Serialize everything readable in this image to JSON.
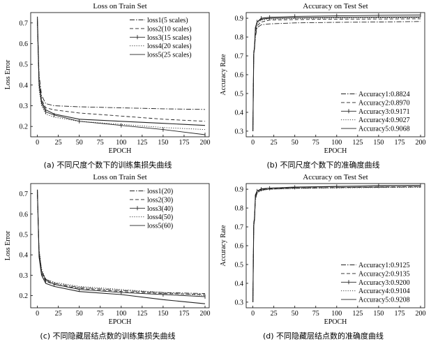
{
  "chart_data": [
    {
      "type": "line",
      "title": "Loss on Train Set",
      "xlabel": "EPOCH",
      "ylabel": "Loss Error",
      "caption": "(a) 不同尺度个数下的训练集损失曲线",
      "xlim": [
        -8,
        205
      ],
      "ylim": [
        0.15,
        0.75
      ],
      "xticks": [
        0,
        25,
        50,
        75,
        100,
        125,
        150,
        175,
        200
      ],
      "yticks": [
        0.2,
        0.3,
        0.4,
        0.5,
        0.6,
        0.7
      ],
      "legend_position": "top-right",
      "series": [
        {
          "name": "loss1(5 scales)",
          "style": "dashdot",
          "x": [
            0,
            2,
            5,
            10,
            20,
            50,
            100,
            150,
            200
          ],
          "y": [
            0.72,
            0.45,
            0.35,
            0.31,
            0.3,
            0.295,
            0.29,
            0.285,
            0.282
          ]
        },
        {
          "name": "loss2(10 scales)",
          "style": "dashed",
          "x": [
            0,
            2,
            5,
            10,
            20,
            50,
            100,
            150,
            200
          ],
          "y": [
            0.7,
            0.42,
            0.33,
            0.29,
            0.28,
            0.265,
            0.25,
            0.235,
            0.225
          ]
        },
        {
          "name": "loss3(15 scales)",
          "style": "marker",
          "x": [
            0,
            2,
            5,
            10,
            20,
            50,
            100,
            150,
            200
          ],
          "y": [
            0.71,
            0.4,
            0.31,
            0.27,
            0.255,
            0.225,
            0.205,
            0.185,
            0.16
          ]
        },
        {
          "name": "loss4(20 scales)",
          "style": "dotted",
          "x": [
            0,
            2,
            5,
            10,
            20,
            50,
            100,
            150,
            200
          ],
          "y": [
            0.69,
            0.38,
            0.3,
            0.26,
            0.245,
            0.225,
            0.21,
            0.195,
            0.185
          ]
        },
        {
          "name": "loss5(25 scales)",
          "style": "solid",
          "x": [
            0,
            2,
            5,
            10,
            20,
            50,
            100,
            150,
            200
          ],
          "y": [
            0.73,
            0.41,
            0.32,
            0.28,
            0.26,
            0.235,
            0.225,
            0.215,
            0.205
          ]
        }
      ]
    },
    {
      "type": "line",
      "title": "Accuracy on Test Set",
      "xlabel": "EPOCH",
      "ylabel": "Accuracy Rate",
      "caption": "(b) 不同尺度个数下的准确度曲线",
      "xlim": [
        -8,
        205
      ],
      "ylim": [
        0.27,
        0.93
      ],
      "xticks": [
        0,
        25,
        50,
        75,
        100,
        125,
        150,
        175,
        200
      ],
      "yticks": [
        0.3,
        0.4,
        0.5,
        0.6,
        0.7,
        0.8,
        0.9
      ],
      "legend_position": "bottom-right",
      "series": [
        {
          "name": "Accuracy1:0.8824",
          "style": "dashdot",
          "x": [
            0,
            1,
            2,
            3,
            5,
            10,
            20,
            50,
            100,
            150,
            200
          ],
          "y": [
            0.3,
            0.72,
            0.74,
            0.8,
            0.85,
            0.865,
            0.87,
            0.875,
            0.878,
            0.88,
            0.8824
          ]
        },
        {
          "name": "Accuracy2:0.8970",
          "style": "dashed",
          "x": [
            0,
            1,
            2,
            3,
            5,
            10,
            20,
            50,
            100,
            150,
            200
          ],
          "y": [
            0.3,
            0.71,
            0.75,
            0.82,
            0.86,
            0.88,
            0.89,
            0.893,
            0.895,
            0.896,
            0.897
          ]
        },
        {
          "name": "Accuracy3:0.9171",
          "style": "marker",
          "x": [
            0,
            1,
            2,
            3,
            5,
            10,
            20,
            50,
            100,
            150,
            200
          ],
          "y": [
            0.3,
            0.7,
            0.76,
            0.84,
            0.88,
            0.9,
            0.905,
            0.91,
            0.913,
            0.915,
            0.9171
          ]
        },
        {
          "name": "Accuracy4:0.9027",
          "style": "dotted",
          "x": [
            0,
            1,
            2,
            3,
            5,
            10,
            20,
            50,
            100,
            150,
            200
          ],
          "y": [
            0.3,
            0.72,
            0.75,
            0.83,
            0.87,
            0.89,
            0.895,
            0.899,
            0.901,
            0.902,
            0.9027
          ]
        },
        {
          "name": "Accuracy5:0.9068",
          "style": "solid",
          "x": [
            0,
            1,
            2,
            3,
            5,
            10,
            20,
            50,
            100,
            150,
            200
          ],
          "y": [
            0.3,
            0.71,
            0.74,
            0.85,
            0.88,
            0.895,
            0.9,
            0.903,
            0.905,
            0.906,
            0.9068
          ]
        }
      ]
    },
    {
      "type": "line",
      "title": "Loss on Train Set",
      "xlabel": "EPOCH",
      "ylabel": "Loss Error",
      "caption": "(c) 不同隐藏层结点数的训练集损失曲线",
      "xlim": [
        -8,
        205
      ],
      "ylim": [
        0.14,
        0.75
      ],
      "xticks": [
        0,
        25,
        50,
        75,
        100,
        125,
        150,
        175,
        200
      ],
      "yticks": [
        0.2,
        0.3,
        0.4,
        0.5,
        0.6,
        0.7
      ],
      "legend_position": "top-right",
      "series": [
        {
          "name": "loss1(20)",
          "style": "dashdot",
          "x": [
            0,
            2,
            5,
            10,
            20,
            50,
            100,
            150,
            200
          ],
          "y": [
            0.7,
            0.42,
            0.32,
            0.28,
            0.26,
            0.24,
            0.225,
            0.215,
            0.21
          ]
        },
        {
          "name": "loss2(30)",
          "style": "dashed",
          "x": [
            0,
            2,
            5,
            10,
            20,
            50,
            100,
            150,
            200
          ],
          "y": [
            0.72,
            0.4,
            0.31,
            0.27,
            0.255,
            0.235,
            0.22,
            0.21,
            0.205
          ]
        },
        {
          "name": "loss3(40)",
          "style": "marker",
          "x": [
            0,
            2,
            5,
            10,
            20,
            50,
            100,
            150,
            200
          ],
          "y": [
            0.71,
            0.41,
            0.32,
            0.275,
            0.255,
            0.23,
            0.215,
            0.205,
            0.195
          ]
        },
        {
          "name": "loss4(50)",
          "style": "dotted",
          "x": [
            0,
            2,
            5,
            10,
            20,
            50,
            100,
            150,
            200
          ],
          "y": [
            0.69,
            0.43,
            0.33,
            0.28,
            0.265,
            0.245,
            0.23,
            0.215,
            0.2
          ]
        },
        {
          "name": "loss5(60)",
          "style": "solid",
          "x": [
            0,
            2,
            5,
            10,
            20,
            50,
            100,
            150,
            200
          ],
          "y": [
            0.72,
            0.39,
            0.3,
            0.26,
            0.245,
            0.22,
            0.205,
            0.18,
            0.16
          ]
        }
      ]
    },
    {
      "type": "line",
      "title": "Accuracy on Test Set",
      "xlabel": "EPOCH",
      "ylabel": "Accuracy Rate",
      "caption": "(d) 不同隐藏层结点数的准确度曲线",
      "xlim": [
        -8,
        205
      ],
      "ylim": [
        0.27,
        0.93
      ],
      "xticks": [
        0,
        25,
        50,
        75,
        100,
        125,
        150,
        175,
        200
      ],
      "yticks": [
        0.3,
        0.4,
        0.5,
        0.6,
        0.7,
        0.8,
        0.9
      ],
      "legend_position": "bottom-right",
      "series": [
        {
          "name": "Accuracy1:0.9125",
          "style": "dashdot",
          "x": [
            0,
            1,
            2,
            3,
            5,
            10,
            20,
            50,
            100,
            150,
            200
          ],
          "y": [
            0.3,
            0.72,
            0.75,
            0.85,
            0.88,
            0.895,
            0.9,
            0.905,
            0.908,
            0.91,
            0.9125
          ]
        },
        {
          "name": "Accuracy2:0.9135",
          "style": "dashed",
          "x": [
            0,
            1,
            2,
            3,
            5,
            10,
            20,
            50,
            100,
            150,
            200
          ],
          "y": [
            0.3,
            0.71,
            0.76,
            0.86,
            0.885,
            0.898,
            0.902,
            0.906,
            0.909,
            0.911,
            0.9135
          ]
        },
        {
          "name": "Accuracy3:0.9200",
          "style": "marker",
          "x": [
            0,
            1,
            2,
            3,
            5,
            10,
            20,
            50,
            100,
            150,
            200
          ],
          "y": [
            0.3,
            0.7,
            0.74,
            0.86,
            0.89,
            0.9,
            0.905,
            0.91,
            0.914,
            0.917,
            0.92
          ]
        },
        {
          "name": "Accuracy4:0.9104",
          "style": "dotted",
          "x": [
            0,
            1,
            2,
            3,
            5,
            10,
            20,
            50,
            100,
            150,
            200
          ],
          "y": [
            0.3,
            0.72,
            0.75,
            0.84,
            0.88,
            0.893,
            0.9,
            0.904,
            0.907,
            0.909,
            0.9104
          ]
        },
        {
          "name": "Accuracy5:0.9208",
          "style": "solid",
          "x": [
            0,
            1,
            2,
            3,
            5,
            10,
            20,
            50,
            100,
            150,
            200
          ],
          "y": [
            0.3,
            0.71,
            0.74,
            0.87,
            0.89,
            0.902,
            0.906,
            0.911,
            0.915,
            0.918,
            0.9208
          ]
        }
      ]
    }
  ]
}
